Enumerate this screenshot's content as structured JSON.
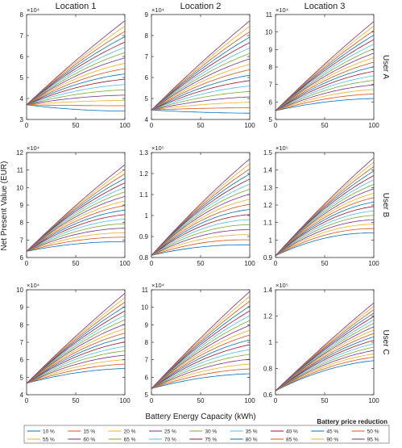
{
  "figure": {
    "column_titles": [
      "Location 1",
      "Location 2",
      "Location 3"
    ],
    "row_titles": [
      "User A",
      "User B",
      "User C"
    ],
    "ylabel": "Net Present Value (EUR)",
    "xlabel": "Battery Energy Capacity (kWh)",
    "x_ticks": [
      0,
      50,
      100
    ],
    "legend_title": "Battery price reduction",
    "colors": [
      "#0072BD",
      "#D95319",
      "#EDB120",
      "#7E2F8E",
      "#77AC30",
      "#4DBEEE",
      "#A2142F",
      "#0072BD",
      "#D95319",
      "#EDB120",
      "#7E2F8E",
      "#77AC30",
      "#4DBEEE",
      "#A2142F",
      "#0072BD",
      "#D95319",
      "#EDB120",
      "#7E2F8E"
    ]
  },
  "chart_data": [
    {
      "type": "line",
      "row": 0,
      "col": 0,
      "x": [
        0,
        100
      ],
      "xlim": [
        0,
        100
      ],
      "ylim": [
        3,
        8
      ],
      "y_ticks": [
        "3",
        "4",
        "5",
        "6",
        "7",
        "8"
      ],
      "exponent": "×10⁴",
      "start": 3.7,
      "end_low": 3.4,
      "end_high": 7.7,
      "bend": 0.35,
      "series_names": [
        "10 %",
        "15 %",
        "20 %",
        "25 %",
        "30 %",
        "35 %",
        "40 %",
        "45 %",
        "50 %",
        "55 %",
        "60 %",
        "65 %",
        "70 %",
        "75 %",
        "80 %",
        "85 %",
        "90 %",
        "95 %"
      ]
    },
    {
      "type": "line",
      "row": 0,
      "col": 1,
      "x": [
        0,
        100
      ],
      "xlim": [
        0,
        100
      ],
      "ylim": [
        4,
        9
      ],
      "y_ticks": [
        "4",
        "5",
        "6",
        "7",
        "8",
        "9"
      ],
      "exponent": "×10⁴",
      "start": 4.45,
      "end_low": 4.3,
      "end_high": 8.7,
      "bend": 0.3,
      "series_names": [
        "10 %",
        "15 %",
        "20 %",
        "25 %",
        "30 %",
        "35 %",
        "40 %",
        "45 %",
        "50 %",
        "55 %",
        "60 %",
        "65 %",
        "70 %",
        "75 %",
        "80 %",
        "85 %",
        "90 %",
        "95 %"
      ]
    },
    {
      "type": "line",
      "row": 0,
      "col": 2,
      "x": [
        0,
        100
      ],
      "xlim": [
        0,
        100
      ],
      "ylim": [
        5,
        11
      ],
      "y_ticks": [
        "5",
        "6",
        "7",
        "8",
        "9",
        "10",
        "11"
      ],
      "exponent": "×10⁴",
      "start": 5.5,
      "end_low": 6.2,
      "end_high": 10.6,
      "bend": 0.3,
      "series_names": [
        "10 %",
        "15 %",
        "20 %",
        "25 %",
        "30 %",
        "35 %",
        "40 %",
        "45 %",
        "50 %",
        "55 %",
        "60 %",
        "65 %",
        "70 %",
        "75 %",
        "80 %",
        "85 %",
        "90 %",
        "95 %"
      ]
    },
    {
      "type": "line",
      "row": 1,
      "col": 0,
      "x": [
        0,
        100
      ],
      "xlim": [
        0,
        100
      ],
      "ylim": [
        6,
        12
      ],
      "y_ticks": [
        "6",
        "7",
        "8",
        "9",
        "10",
        "11",
        "12"
      ],
      "exponent": "×10⁴",
      "start": 6.35,
      "end_low": 6.9,
      "end_high": 11.3,
      "bend": 0.4,
      "series_names": [
        "10 %",
        "15 %",
        "20 %",
        "25 %",
        "30 %",
        "35 %",
        "40 %",
        "45 %",
        "50 %",
        "55 %",
        "60 %",
        "65 %",
        "70 %",
        "75 %",
        "80 %",
        "85 %",
        "90 %",
        "95 %"
      ]
    },
    {
      "type": "line",
      "row": 1,
      "col": 1,
      "x": [
        0,
        100
      ],
      "xlim": [
        0,
        100
      ],
      "ylim": [
        0.8,
        1.3
      ],
      "y_ticks": [
        "0.8",
        "0.9",
        "1",
        "1.1",
        "1.2",
        "1.3"
      ],
      "exponent": "×10⁵",
      "start": 0.81,
      "end_low": 0.86,
      "end_high": 1.27,
      "bend": 0.45,
      "series_names": [
        "10 %",
        "15 %",
        "20 %",
        "25 %",
        "30 %",
        "35 %",
        "40 %",
        "45 %",
        "50 %",
        "55 %",
        "60 %",
        "65 %",
        "70 %",
        "75 %",
        "80 %",
        "85 %",
        "90 %",
        "95 %"
      ]
    },
    {
      "type": "line",
      "row": 1,
      "col": 2,
      "x": [
        0,
        100
      ],
      "xlim": [
        0,
        100
      ],
      "ylim": [
        0.9,
        1.5
      ],
      "y_ticks": [
        "0.9",
        "1",
        "1.1",
        "1.2",
        "1.3",
        "1.4",
        "1.5"
      ],
      "exponent": "×10⁵",
      "start": 0.91,
      "end_low": 1.04,
      "end_high": 1.47,
      "bend": 0.4,
      "series_names": [
        "10 %",
        "15 %",
        "20 %",
        "25 %",
        "30 %",
        "35 %",
        "40 %",
        "45 %",
        "50 %",
        "55 %",
        "60 %",
        "65 %",
        "70 %",
        "75 %",
        "80 %",
        "85 %",
        "90 %",
        "95 %"
      ]
    },
    {
      "type": "line",
      "row": 2,
      "col": 0,
      "x": [
        0,
        100
      ],
      "xlim": [
        0,
        100
      ],
      "ylim": [
        4,
        10
      ],
      "y_ticks": [
        "4",
        "5",
        "6",
        "7",
        "8",
        "9",
        "10"
      ],
      "exponent": "×10⁴",
      "start": 4.65,
      "end_low": 5.5,
      "end_high": 9.8,
      "bend": 0.3,
      "series_names": [
        "10 %",
        "15 %",
        "20 %",
        "25 %",
        "30 %",
        "35 %",
        "40 %",
        "45 %",
        "50 %",
        "55 %",
        "60 %",
        "65 %",
        "70 %",
        "75 %",
        "80 %",
        "85 %",
        "90 %",
        "95 %"
      ]
    },
    {
      "type": "line",
      "row": 2,
      "col": 1,
      "x": [
        0,
        100
      ],
      "xlim": [
        0,
        100
      ],
      "ylim": [
        5,
        11
      ],
      "y_ticks": [
        "5",
        "6",
        "7",
        "8",
        "9",
        "10",
        "11"
      ],
      "exponent": "×10⁴",
      "start": 5.35,
      "end_low": 6.2,
      "end_high": 10.9,
      "bend": 0.3,
      "series_names": [
        "10 %",
        "15 %",
        "20 %",
        "25 %",
        "30 %",
        "35 %",
        "40 %",
        "45 %",
        "50 %",
        "55 %",
        "60 %",
        "65 %",
        "70 %",
        "75 %",
        "80 %",
        "85 %",
        "90 %",
        "95 %"
      ]
    },
    {
      "type": "line",
      "row": 2,
      "col": 2,
      "x": [
        0,
        100
      ],
      "xlim": [
        0,
        100
      ],
      "ylim": [
        0.6,
        1.4
      ],
      "y_ticks": [
        "0.6",
        "0.8",
        "1",
        "1.2",
        "1.4"
      ],
      "exponent": "×10⁵",
      "start": 0.63,
      "end_low": 0.86,
      "end_high": 1.3,
      "bend": 0.25,
      "series_names": [
        "10 %",
        "15 %",
        "20 %",
        "25 %",
        "30 %",
        "35 %",
        "40 %",
        "45 %",
        "50 %",
        "55 %",
        "60 %",
        "65 %",
        "70 %",
        "75 %",
        "80 %",
        "85 %",
        "90 %",
        "95 %"
      ]
    }
  ]
}
